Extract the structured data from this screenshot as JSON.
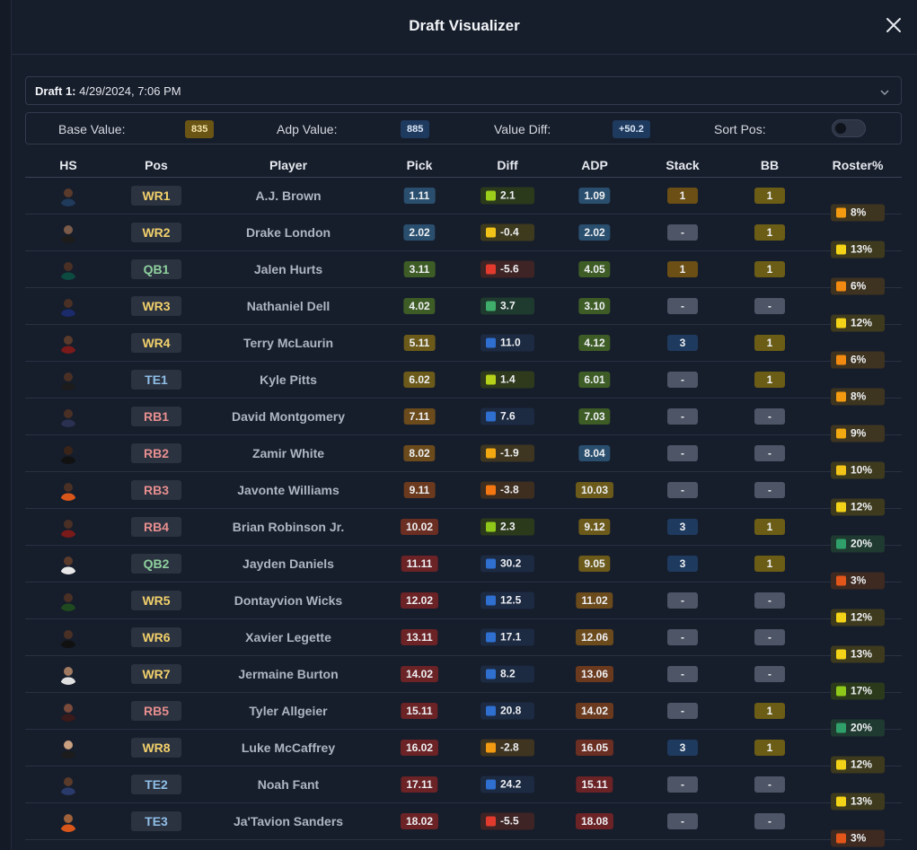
{
  "title": "Draft Visualizer",
  "draft_select": {
    "prefix": "Draft 1:",
    "value": "4/29/2024, 7:06 PM"
  },
  "summary": {
    "base_label": "Base Value:",
    "base_value": "835",
    "adp_label": "Adp Value:",
    "adp_value": "885",
    "diff_label": "Value Diff:",
    "diff_value": "+50.2",
    "sort_label": "Sort Pos:",
    "sort_on": false
  },
  "columns": [
    "HS",
    "Pos",
    "Player",
    "Pick",
    "Diff",
    "ADP",
    "Stack",
    "BB",
    "Roster%"
  ],
  "colors": {
    "pick": [
      "#2a4f6e",
      "#2a4f6e",
      "#3e5c26",
      "#3e5c26",
      "#6b5a1a",
      "#6b5a1a",
      "#6b4a1c",
      "#6b4a1c",
      "#6b3a1e",
      "#6b2e22",
      "#6b2326",
      "#6b2326",
      "#6b2326",
      "#6b2326",
      "#6b2326",
      "#6b2326",
      "#6b2326",
      "#6b2326"
    ],
    "adp": [
      "#2a4f6e",
      "#2a4f6e",
      "#3e5c26",
      "#3e5c26",
      "#3e5c26",
      "#3e5c26",
      "#3e5c26",
      "#2a4f6e",
      "#6b5a1a",
      "#6b5a1a",
      "#6b5a1a",
      "#6b4a1c",
      "#6b4a1c",
      "#6b3a1e",
      "#6b3a1e",
      "#6b2e22",
      "#6b2326",
      "#6b2326"
    ],
    "pos_text": {
      "WR": "#f2d16b",
      "QB": "#8fd19e",
      "TE": "#8fbfe8",
      "RB": "#e88f8f"
    },
    "stack_3": "#1f3a5f",
    "stack_1": "#6b4f15",
    "bb_1": "#6b5d15",
    "dash": "#4e5566"
  },
  "rows": [
    {
      "pos": "WR1",
      "player": "A.J. Brown",
      "pick": "1.11",
      "diff": "2.1",
      "diff_c": "#9bcf1a",
      "diff_bg": "#2c3a1c",
      "adp": "1.09",
      "stack": "1",
      "bb": "1",
      "roster": "8%",
      "ros_c": "#f39a11",
      "ros_bg": "#3e3520",
      "skin": "#5a3a2a",
      "jersey": "#1f3a5a"
    },
    {
      "pos": "WR2",
      "player": "Drake London",
      "pick": "2.02",
      "diff": "-0.4",
      "diff_c": "#f2c318",
      "diff_bg": "#3e3a1e",
      "adp": "2.02",
      "stack": "-",
      "bb": "1",
      "roster": "13%",
      "ros_c": "#f2d318",
      "ros_bg": "#3e3a1e",
      "skin": "#7a5a48",
      "jersey": "#1c1c1c"
    },
    {
      "pos": "QB1",
      "player": "Jalen Hurts",
      "pick": "3.11",
      "diff": "-5.6",
      "diff_c": "#e23b2e",
      "diff_bg": "#3e2424",
      "adp": "4.05",
      "stack": "1",
      "bb": "1",
      "roster": "6%",
      "ros_c": "#f28a11",
      "ros_bg": "#3e3220",
      "skin": "#4a3024",
      "jersey": "#0d4a40"
    },
    {
      "pos": "WR3",
      "player": "Nathaniel Dell",
      "pick": "4.02",
      "diff": "3.7",
      "diff_c": "#3fae6a",
      "diff_bg": "#1f3a2e",
      "adp": "3.10",
      "stack": "-",
      "bb": "-",
      "roster": "12%",
      "ros_c": "#f2d318",
      "ros_bg": "#3e3a1e",
      "skin": "#4a3024",
      "jersey": "#1a2a6a"
    },
    {
      "pos": "WR4",
      "player": "Terry McLaurin",
      "pick": "5.11",
      "diff": "11.0",
      "diff_c": "#2f6fd0",
      "diff_bg": "#1c2a42",
      "adp": "4.12",
      "stack": "3",
      "bb": "1",
      "roster": "6%",
      "ros_c": "#f28a11",
      "ros_bg": "#3e3220",
      "skin": "#5a3a2a",
      "jersey": "#7a1a1a"
    },
    {
      "pos": "TE1",
      "player": "Kyle Pitts",
      "pick": "6.02",
      "diff": "1.4",
      "diff_c": "#b6d11a",
      "diff_bg": "#2f3a1c",
      "adp": "6.01",
      "stack": "-",
      "bb": "1",
      "roster": "8%",
      "ros_c": "#f39a11",
      "ros_bg": "#3e3520",
      "skin": "#4a3024",
      "jersey": "#1c1c1c"
    },
    {
      "pos": "RB1",
      "player": "David Montgomery",
      "pick": "7.11",
      "diff": "7.6",
      "diff_c": "#2f6fd0",
      "diff_bg": "#1c2a42",
      "adp": "7.03",
      "stack": "-",
      "bb": "-",
      "roster": "9%",
      "ros_c": "#f2a811",
      "ros_bg": "#3e3620",
      "skin": "#4a3024",
      "jersey": "#2a3050"
    },
    {
      "pos": "RB2",
      "player": "Zamir White",
      "pick": "8.02",
      "diff": "-1.9",
      "diff_c": "#f2a811",
      "diff_bg": "#3e3620",
      "adp": "8.04",
      "stack": "-",
      "bb": "-",
      "roster": "10%",
      "ros_c": "#f2c318",
      "ros_bg": "#3e3a1e",
      "skin": "#3a2418",
      "jersey": "#111111"
    },
    {
      "pos": "RB3",
      "player": "Javonte Williams",
      "pick": "9.11",
      "diff": "-3.8",
      "diff_c": "#f27611",
      "diff_bg": "#3e2e20",
      "adp": "10.03",
      "stack": "-",
      "bb": "-",
      "roster": "12%",
      "ros_c": "#f2d318",
      "ros_bg": "#3e3a1e",
      "skin": "#4a3024",
      "jersey": "#d9561a"
    },
    {
      "pos": "RB4",
      "player": "Brian Robinson Jr.",
      "pick": "10.02",
      "diff": "2.3",
      "diff_c": "#8ec91a",
      "diff_bg": "#2c3a1c",
      "adp": "9.12",
      "stack": "3",
      "bb": "1",
      "roster": "20%",
      "ros_c": "#2fa06a",
      "ros_bg": "#1f3a30",
      "skin": "#4a3024",
      "jersey": "#7a1a1a"
    },
    {
      "pos": "QB2",
      "player": "Jayden Daniels",
      "pick": "11.11",
      "diff": "30.2",
      "diff_c": "#2f6fd0",
      "diff_bg": "#1c2a42",
      "adp": "9.05",
      "stack": "3",
      "bb": "1",
      "roster": "3%",
      "ros_c": "#e2561a",
      "ros_bg": "#3e2a20",
      "skin": "#5a3a2a",
      "jersey": "#e8e8e8"
    },
    {
      "pos": "WR5",
      "player": "Dontayvion Wicks",
      "pick": "12.02",
      "diff": "12.5",
      "diff_c": "#2f6fd0",
      "diff_bg": "#1c2a42",
      "adp": "11.02",
      "stack": "-",
      "bb": "-",
      "roster": "12%",
      "ros_c": "#f2d318",
      "ros_bg": "#3e3a1e",
      "skin": "#4a3024",
      "jersey": "#1f4a1f"
    },
    {
      "pos": "WR6",
      "player": "Xavier Legette",
      "pick": "13.11",
      "diff": "17.1",
      "diff_c": "#2f6fd0",
      "diff_bg": "#1c2a42",
      "adp": "12.06",
      "stack": "-",
      "bb": "-",
      "roster": "13%",
      "ros_c": "#f2d318",
      "ros_bg": "#3e3a1e",
      "skin": "#4a3024",
      "jersey": "#111111"
    },
    {
      "pos": "WR7",
      "player": "Jermaine Burton",
      "pick": "14.02",
      "diff": "8.2",
      "diff_c": "#2f6fd0",
      "diff_bg": "#1c2a42",
      "adp": "13.06",
      "stack": "-",
      "bb": "-",
      "roster": "17%",
      "ros_c": "#8ec91a",
      "ros_bg": "#2c3a1c",
      "skin": "#a07a60",
      "jersey": "#e0e0e0"
    },
    {
      "pos": "RB5",
      "player": "Tyler Allgeier",
      "pick": "15.11",
      "diff": "20.8",
      "diff_c": "#2f6fd0",
      "diff_bg": "#1c2a42",
      "adp": "14.02",
      "stack": "-",
      "bb": "1",
      "roster": "20%",
      "ros_c": "#2fa06a",
      "ros_bg": "#1f3a30",
      "skin": "#7a4a3a",
      "jersey": "#3a1a1a"
    },
    {
      "pos": "WR8",
      "player": "Luke McCaffrey",
      "pick": "16.02",
      "diff": "-2.8",
      "diff_c": "#f29a11",
      "diff_bg": "#3e3420",
      "adp": "16.05",
      "stack": "3",
      "bb": "1",
      "roster": "12%",
      "ros_c": "#f2d318",
      "ros_bg": "#3e3a1e",
      "skin": "#c9a080",
      "jersey": "#1c1c1c"
    },
    {
      "pos": "TE2",
      "player": "Noah Fant",
      "pick": "17.11",
      "diff": "24.2",
      "diff_c": "#2f6fd0",
      "diff_bg": "#1c2a42",
      "adp": "15.11",
      "stack": "-",
      "bb": "-",
      "roster": "13%",
      "ros_c": "#f2d318",
      "ros_bg": "#3e3a1e",
      "skin": "#5a3a2a",
      "jersey": "#2a3a6a"
    },
    {
      "pos": "TE3",
      "player": "Ja'Tavion Sanders",
      "pick": "18.02",
      "diff": "-5.5",
      "diff_c": "#e23b2e",
      "diff_bg": "#3e2424",
      "adp": "18.08",
      "stack": "-",
      "bb": "-",
      "roster": "3%",
      "ros_c": "#e2561a",
      "ros_bg": "#3e2a20",
      "skin": "#a0623a",
      "jersey": "#d9561a"
    }
  ]
}
